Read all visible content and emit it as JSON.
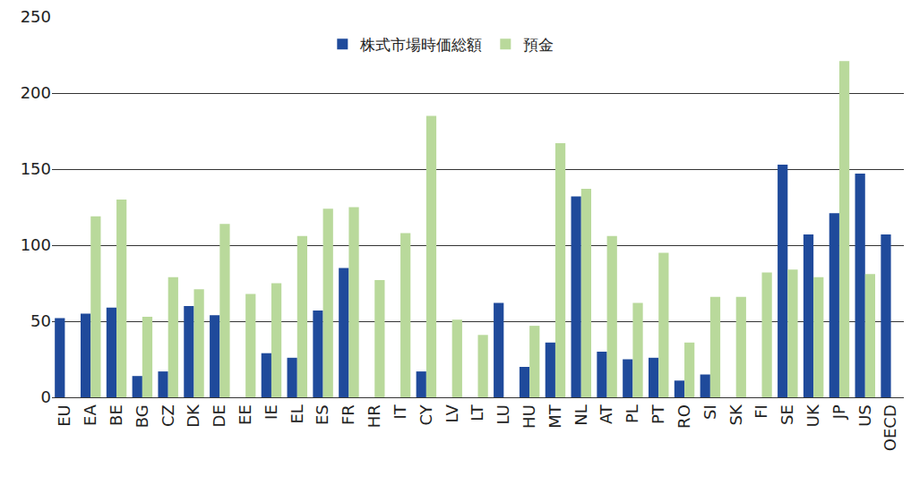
{
  "chart_data": {
    "type": "bar",
    "categories": [
      "EU",
      "EA",
      "BE",
      "BG",
      "CZ",
      "DK",
      "DE",
      "EE",
      "IE",
      "EL",
      "ES",
      "FR",
      "HR",
      "IT",
      "CY",
      "LV",
      "LT",
      "LU",
      "HU",
      "MT",
      "NL",
      "AT",
      "PL",
      "PT",
      "RO",
      "SI",
      "SK",
      "FI",
      "SE",
      "UK",
      "JP",
      "US",
      "OECD"
    ],
    "series": [
      {
        "name": "株式市場時価総額",
        "color": "#1f4a9b",
        "values": [
          52,
          55,
          59,
          14,
          17,
          60,
          54,
          null,
          29,
          26,
          57,
          85,
          null,
          null,
          17,
          null,
          null,
          62,
          20,
          36,
          132,
          30,
          25,
          26,
          11,
          15,
          null,
          null,
          153,
          107,
          121,
          147,
          107
        ]
      },
      {
        "name": "預金",
        "color": "#b9d99b",
        "values": [
          null,
          119,
          130,
          53,
          79,
          71,
          114,
          68,
          75,
          106,
          124,
          125,
          77,
          108,
          185,
          51,
          41,
          null,
          47,
          167,
          137,
          106,
          62,
          95,
          36,
          66,
          66,
          82,
          84,
          79,
          221,
          81,
          null
        ]
      }
    ],
    "ylim": [
      0,
      250
    ],
    "yticks": [
      0,
      50,
      100,
      150,
      200,
      250
    ],
    "grid": true,
    "legend": "top"
  }
}
